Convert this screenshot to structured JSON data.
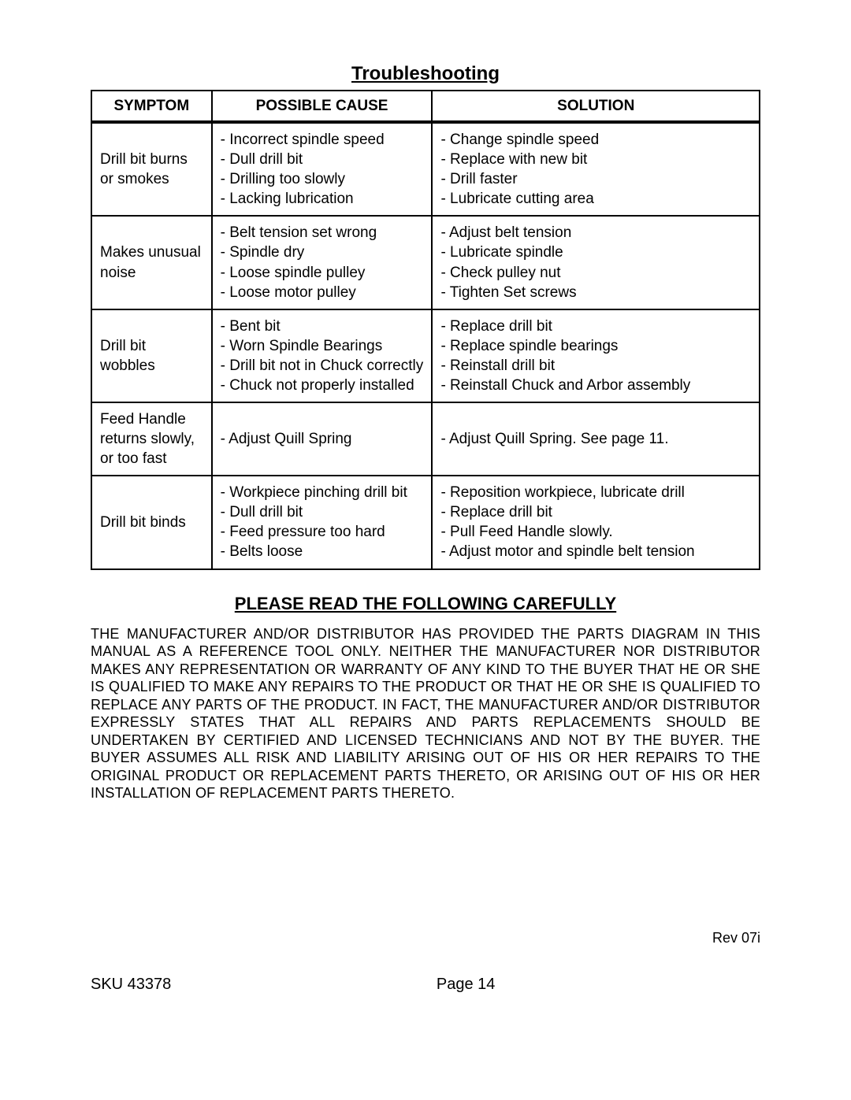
{
  "title": "Troubleshooting",
  "table": {
    "headers": {
      "symptom": "SYMPTOM",
      "cause": "POSSIBLE CAUSE",
      "solution": "SOLUTION"
    },
    "rows": [
      {
        "symptom": "Drill bit burns or smokes",
        "causes": [
          "- Incorrect spindle speed",
          "- Dull drill bit",
          "- Drilling too slowly",
          "- Lacking lubrication"
        ],
        "solutions": [
          "- Change spindle speed",
          "- Replace with new bit",
          "- Drill faster",
          "- Lubricate cutting area"
        ]
      },
      {
        "symptom": "Makes unusual noise",
        "causes": [
          "- Belt tension set wrong",
          "- Spindle dry",
          "- Loose spindle pulley",
          "- Loose motor pulley"
        ],
        "solutions": [
          "- Adjust belt tension",
          "- Lubricate spindle",
          "- Check pulley nut",
          "- Tighten Set screws"
        ]
      },
      {
        "symptom": "Drill bit wobbles",
        "causes": [
          "- Bent bit",
          "- Worn Spindle Bearings",
          "- Drill bit not in Chuck correctly",
          "- Chuck not properly installed"
        ],
        "solutions": [
          "- Replace drill bit",
          "- Replace spindle bearings",
          "- Reinstall drill bit",
          "- Reinstall Chuck and Arbor assembly"
        ]
      },
      {
        "symptom": "Feed Handle returns slowly, or too fast",
        "causes": [
          "- Adjust Quill Spring"
        ],
        "solutions": [
          "- Adjust Quill Spring. See page 11."
        ]
      },
      {
        "symptom": "Drill bit binds",
        "causes": [
          "- Workpiece pinching drill bit",
          "- Dull drill bit",
          "- Feed pressure too hard",
          "- Belts loose"
        ],
        "solutions": [
          "- Reposition workpiece, lubricate drill",
          "- Replace drill bit",
          "- Pull Feed Handle slowly.",
          "- Adjust motor and spindle belt tension"
        ]
      }
    ]
  },
  "notice": {
    "heading": "PLEASE READ THE FOLLOWING CAREFULLY",
    "body": "THE MANUFACTURER AND/OR DISTRIBUTOR HAS PROVIDED THE PARTS DIAGRAM IN THIS MANUAL AS A REFERENCE TOOL ONLY.  NEITHER THE MANUFACTURER NOR DISTRIBUTOR MAKES ANY REPRESENTATION OR WARRANTY OF ANY KIND TO THE BUYER THAT HE OR SHE IS QUALIFIED TO MAKE ANY REPAIRS TO THE PRODUCT OR THAT HE OR SHE IS QUALIFIED TO REPLACE ANY PARTS OF THE PRODUCT.  IN FACT, THE MANUFACTURER AND/OR DISTRIBUTOR EXPRESSLY STATES THAT ALL REPAIRS AND PARTS REPLACEMENTS SHOULD BE UNDERTAKEN BY CERTIFIED AND LICENSED TECHNICIANS AND NOT BY THE BUYER. THE BUYER ASSUMES ALL RISK AND LIABILITY ARISING OUT OF HIS OR HER REPAIRS TO THE ORIGINAL PRODUCT OR REPLACEMENT PARTS THERETO, OR ARISING OUT OF HIS OR HER INSTALLATION OF REPLACEMENT PARTS THERETO."
  },
  "footer": {
    "rev": "Rev 07i",
    "sku": "SKU 43378",
    "page": "Page 14"
  },
  "colors": {
    "text": "#000000",
    "background": "#ffffff",
    "border": "#000000"
  },
  "typography": {
    "title_fontsize": 24,
    "header_fontsize": 19,
    "cell_fontsize": 19,
    "notice_heading_fontsize": 22,
    "notice_body_fontsize": 18,
    "footer_fontsize": 20
  }
}
